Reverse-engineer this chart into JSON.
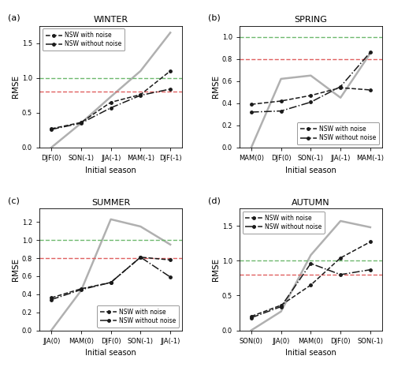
{
  "panels": [
    {
      "label": "(a)",
      "title": "WINTER",
      "xticks": [
        "DJF(0)",
        "SON(-1)",
        "JJA(-1)",
        "MAM(-1)",
        "DJF(-1)"
      ],
      "ylim": [
        0.0,
        1.75
      ],
      "yticks": [
        0.0,
        0.5,
        1.0,
        1.5
      ],
      "os_noise": [
        0.27,
        0.36,
        0.65,
        0.76,
        1.1
      ],
      "fsm_noise": [
        0.26,
        0.35,
        0.57,
        0.75,
        0.84
      ],
      "persistence": [
        0.0,
        0.35,
        0.73,
        1.1,
        1.65
      ],
      "legend_loc": "upper left"
    },
    {
      "label": "(b)",
      "title": "SPRING",
      "xticks": [
        "MAM(0)",
        "DJF(0)",
        "SON(-1)",
        "JJA(-1)",
        "MAM(-1)"
      ],
      "ylim": [
        0.0,
        1.1
      ],
      "yticks": [
        0.0,
        0.2,
        0.4,
        0.6,
        0.8,
        1.0
      ],
      "os_noise": [
        0.39,
        0.42,
        0.47,
        0.54,
        0.52
      ],
      "fsm_noise": [
        0.32,
        0.33,
        0.41,
        0.55,
        0.86
      ],
      "persistence": [
        0.0,
        0.62,
        0.65,
        0.45,
        0.85
      ],
      "legend_loc": "lower right"
    },
    {
      "label": "(c)",
      "title": "SUMMER",
      "xticks": [
        "JJA(0)",
        "MAM(0)",
        "DJF(0)",
        "SON(-1)",
        "JJA(-1)"
      ],
      "ylim": [
        0.0,
        1.35
      ],
      "yticks": [
        0.0,
        0.2,
        0.4,
        0.6,
        0.8,
        1.0,
        1.2
      ],
      "os_noise": [
        0.36,
        0.46,
        0.53,
        0.81,
        0.78
      ],
      "fsm_noise": [
        0.34,
        0.45,
        0.53,
        0.81,
        0.59
      ],
      "persistence": [
        0.0,
        0.44,
        1.23,
        1.15,
        0.95
      ],
      "legend_loc": "lower right"
    },
    {
      "label": "(d)",
      "title": "AUTUMN",
      "xticks": [
        "SON(0)",
        "JJA(0)",
        "MAM(0)",
        "DJF(0)",
        "SON(-1)"
      ],
      "ylim": [
        0.0,
        1.75
      ],
      "yticks": [
        0.0,
        0.5,
        1.0,
        1.5
      ],
      "os_noise": [
        0.2,
        0.36,
        0.65,
        1.04,
        1.27
      ],
      "fsm_noise": [
        0.18,
        0.34,
        0.96,
        0.8,
        0.87
      ],
      "persistence": [
        0.0,
        0.27,
        1.08,
        1.57,
        1.48
      ],
      "legend_loc": "upper left"
    }
  ],
  "threshold_green": 1.0,
  "threshold_red": 0.8,
  "color_os": "#1a1a1a",
  "color_fsm": "#1a1a1a",
  "color_persistence": "#b0b0b0",
  "color_green": "#6db86d",
  "color_red": "#e06060",
  "xlabel": "Initial season",
  "ylabel": "RMSE"
}
